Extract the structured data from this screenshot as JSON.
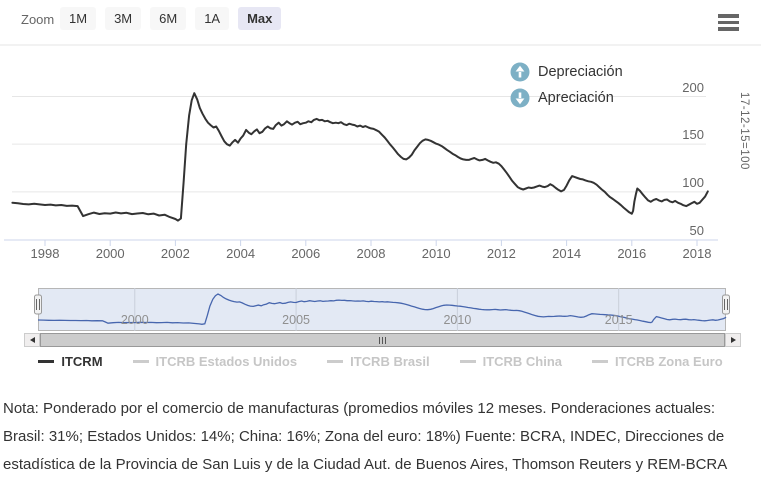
{
  "toolbar": {
    "zoom_label": "Zoom",
    "buttons": [
      {
        "label": "1M",
        "selected": false
      },
      {
        "label": "3M",
        "selected": false
      },
      {
        "label": "6M",
        "selected": false
      },
      {
        "label": "1A",
        "selected": false
      },
      {
        "label": "Max",
        "selected": true
      }
    ],
    "selected_button_color": "#e7e7f4",
    "menu_icon": "hamburger-icon"
  },
  "direction_legend": {
    "icon_color": "#7db0c5",
    "items": [
      {
        "icon": "arrow-up-circle-icon",
        "label": "Depreciación"
      },
      {
        "icon": "arrow-down-circle-icon",
        "label": "Apreciación"
      }
    ]
  },
  "chart_data": {
    "type": "line",
    "title": "",
    "xlabel": "",
    "ylabel": "17-12-15=100",
    "grid": true,
    "xaxis": {
      "ticks": [
        1998,
        2000,
        2002,
        2004,
        2006,
        2008,
        2010,
        2012,
        2014,
        2016,
        2018
      ],
      "range": [
        1997.0,
        2018.35
      ]
    },
    "yaxis": {
      "ticks": [
        50,
        100,
        150,
        200
      ],
      "range": [
        45,
        256
      ],
      "position": "right",
      "label": "17-12-15=100"
    },
    "series": [
      {
        "name": "ITCRM",
        "color": "#333333",
        "points": [
          [
            1997.0,
            88.5
          ],
          [
            1997.17,
            88
          ],
          [
            1997.33,
            87.2
          ],
          [
            1997.5,
            86.8
          ],
          [
            1997.67,
            87.4
          ],
          [
            1997.83,
            86.8
          ],
          [
            1998.0,
            86.2
          ],
          [
            1998.17,
            86.6
          ],
          [
            1998.33,
            85.8
          ],
          [
            1998.5,
            86.2
          ],
          [
            1998.67,
            85.2
          ],
          [
            1998.83,
            85.6
          ],
          [
            1999.0,
            85
          ],
          [
            1999.08,
            80
          ],
          [
            1999.17,
            74.5
          ],
          [
            1999.33,
            76.5
          ],
          [
            1999.5,
            78.2
          ],
          [
            1999.67,
            76.8
          ],
          [
            1999.83,
            77.6
          ],
          [
            2000.0,
            77.2
          ],
          [
            2000.17,
            78.3
          ],
          [
            2000.33,
            77.4
          ],
          [
            2000.5,
            78
          ],
          [
            2000.67,
            76.6
          ],
          [
            2000.83,
            77.3
          ],
          [
            2001.0,
            77.8
          ],
          [
            2001.17,
            76.4
          ],
          [
            2001.33,
            77.2
          ],
          [
            2001.5,
            75.2
          ],
          [
            2001.67,
            76
          ],
          [
            2001.83,
            73.5
          ],
          [
            2002.0,
            71.5
          ],
          [
            2002.08,
            69.8
          ],
          [
            2002.17,
            72
          ],
          [
            2002.25,
            110
          ],
          [
            2002.33,
            150
          ],
          [
            2002.42,
            180
          ],
          [
            2002.5,
            196
          ],
          [
            2002.58,
            203.5
          ],
          [
            2002.67,
            197
          ],
          [
            2002.75,
            188
          ],
          [
            2002.83,
            182
          ],
          [
            2002.92,
            176.5
          ],
          [
            2003.0,
            172.5
          ],
          [
            2003.08,
            170
          ],
          [
            2003.17,
            167.5
          ],
          [
            2003.25,
            168.5
          ],
          [
            2003.33,
            164
          ],
          [
            2003.42,
            158
          ],
          [
            2003.5,
            153
          ],
          [
            2003.58,
            150
          ],
          [
            2003.67,
            148.5
          ],
          [
            2003.75,
            152
          ],
          [
            2003.83,
            154.5
          ],
          [
            2003.92,
            151.5
          ],
          [
            2004.0,
            156
          ],
          [
            2004.08,
            159
          ],
          [
            2004.17,
            165
          ],
          [
            2004.25,
            162
          ],
          [
            2004.33,
            160.5
          ],
          [
            2004.42,
            163.5
          ],
          [
            2004.5,
            165.5
          ],
          [
            2004.58,
            161.5
          ],
          [
            2004.67,
            163
          ],
          [
            2004.75,
            166.5
          ],
          [
            2004.83,
            168.5
          ],
          [
            2004.92,
            166.5
          ],
          [
            2005.0,
            166
          ],
          [
            2005.08,
            170
          ],
          [
            2005.17,
            172.5
          ],
          [
            2005.25,
            169.5
          ],
          [
            2005.33,
            171
          ],
          [
            2005.42,
            174
          ],
          [
            2005.5,
            172
          ],
          [
            2005.58,
            170.5
          ],
          [
            2005.67,
            172.5
          ],
          [
            2005.75,
            173.5
          ],
          [
            2005.83,
            171
          ],
          [
            2005.92,
            172
          ],
          [
            2006.0,
            172.5
          ],
          [
            2006.08,
            174
          ],
          [
            2006.17,
            173
          ],
          [
            2006.25,
            175.5
          ],
          [
            2006.33,
            176.5
          ],
          [
            2006.42,
            175
          ],
          [
            2006.5,
            175.5
          ],
          [
            2006.58,
            174
          ],
          [
            2006.67,
            174.5
          ],
          [
            2006.75,
            173
          ],
          [
            2006.83,
            172
          ],
          [
            2006.92,
            172.5
          ],
          [
            2007.0,
            172
          ],
          [
            2007.08,
            173
          ],
          [
            2007.17,
            171
          ],
          [
            2007.25,
            170
          ],
          [
            2007.33,
            171.5
          ],
          [
            2007.42,
            170.5
          ],
          [
            2007.5,
            170
          ],
          [
            2007.58,
            168.5
          ],
          [
            2007.67,
            169.5
          ],
          [
            2007.75,
            168
          ],
          [
            2007.83,
            169
          ],
          [
            2007.92,
            167.5
          ],
          [
            2008.0,
            166.5
          ],
          [
            2008.08,
            166
          ],
          [
            2008.17,
            164.5
          ],
          [
            2008.25,
            163
          ],
          [
            2008.33,
            160
          ],
          [
            2008.42,
            157
          ],
          [
            2008.5,
            153.5
          ],
          [
            2008.58,
            150
          ],
          [
            2008.67,
            146.5
          ],
          [
            2008.75,
            143
          ],
          [
            2008.83,
            139.5
          ],
          [
            2008.92,
            136.5
          ],
          [
            2009.0,
            134.5
          ],
          [
            2009.08,
            134
          ],
          [
            2009.17,
            136
          ],
          [
            2009.25,
            139
          ],
          [
            2009.33,
            143.5
          ],
          [
            2009.42,
            147.5
          ],
          [
            2009.5,
            151
          ],
          [
            2009.58,
            153.5
          ],
          [
            2009.67,
            155
          ],
          [
            2009.75,
            154.5
          ],
          [
            2009.83,
            153.5
          ],
          [
            2009.92,
            152
          ],
          [
            2010.0,
            150.5
          ],
          [
            2010.08,
            149.5
          ],
          [
            2010.17,
            148
          ],
          [
            2010.25,
            146
          ],
          [
            2010.33,
            144
          ],
          [
            2010.42,
            142
          ],
          [
            2010.5,
            140
          ],
          [
            2010.58,
            138.5
          ],
          [
            2010.67,
            136.5
          ],
          [
            2010.75,
            135
          ],
          [
            2010.83,
            134
          ],
          [
            2010.92,
            133.5
          ],
          [
            2011.0,
            133.5
          ],
          [
            2011.08,
            134.5
          ],
          [
            2011.17,
            135.5
          ],
          [
            2011.25,
            134
          ],
          [
            2011.33,
            133
          ],
          [
            2011.42,
            133.5
          ],
          [
            2011.5,
            134.5
          ],
          [
            2011.58,
            133
          ],
          [
            2011.67,
            131.5
          ],
          [
            2011.75,
            130.5
          ],
          [
            2011.83,
            131
          ],
          [
            2011.92,
            129.5
          ],
          [
            2012.0,
            127
          ],
          [
            2012.08,
            123.5
          ],
          [
            2012.17,
            119.5
          ],
          [
            2012.25,
            115.5
          ],
          [
            2012.33,
            111.5
          ],
          [
            2012.42,
            108
          ],
          [
            2012.5,
            105
          ],
          [
            2012.58,
            103.5
          ],
          [
            2012.67,
            102.5
          ],
          [
            2012.75,
            103.5
          ],
          [
            2012.83,
            104.5
          ],
          [
            2012.92,
            104
          ],
          [
            2013.0,
            104.5
          ],
          [
            2013.08,
            105.5
          ],
          [
            2013.17,
            106.5
          ],
          [
            2013.25,
            105.5
          ],
          [
            2013.33,
            105
          ],
          [
            2013.42,
            106
          ],
          [
            2013.5,
            108
          ],
          [
            2013.58,
            106.5
          ],
          [
            2013.67,
            104
          ],
          [
            2013.75,
            102
          ],
          [
            2013.83,
            100.5
          ],
          [
            2013.92,
            102
          ],
          [
            2014.0,
            106.5
          ],
          [
            2014.08,
            112
          ],
          [
            2014.17,
            116.5
          ],
          [
            2014.25,
            115.5
          ],
          [
            2014.33,
            114.5
          ],
          [
            2014.42,
            113.5
          ],
          [
            2014.5,
            113
          ],
          [
            2014.58,
            112
          ],
          [
            2014.67,
            111
          ],
          [
            2014.75,
            110.5
          ],
          [
            2014.83,
            109.5
          ],
          [
            2014.92,
            107.5
          ],
          [
            2015.0,
            105
          ],
          [
            2015.08,
            102.5
          ],
          [
            2015.17,
            100
          ],
          [
            2015.25,
            97
          ],
          [
            2015.33,
            94.5
          ],
          [
            2015.42,
            92.5
          ],
          [
            2015.5,
            90.5
          ],
          [
            2015.58,
            88.5
          ],
          [
            2015.67,
            86
          ],
          [
            2015.75,
            83.5
          ],
          [
            2015.83,
            81
          ],
          [
            2015.92,
            78.5
          ],
          [
            2016.0,
            77
          ],
          [
            2016.04,
            80
          ],
          [
            2016.08,
            90
          ],
          [
            2016.13,
            98
          ],
          [
            2016.17,
            103.5
          ],
          [
            2016.25,
            101
          ],
          [
            2016.33,
            97.5
          ],
          [
            2016.42,
            94
          ],
          [
            2016.5,
            91
          ],
          [
            2016.58,
            89.5
          ],
          [
            2016.67,
            91.5
          ],
          [
            2016.75,
            92.5
          ],
          [
            2016.83,
            91
          ],
          [
            2016.92,
            90
          ],
          [
            2017.0,
            91.5
          ],
          [
            2017.08,
            92
          ],
          [
            2017.17,
            90
          ],
          [
            2017.25,
            89
          ],
          [
            2017.33,
            90.5
          ],
          [
            2017.42,
            88.5
          ],
          [
            2017.5,
            87.5
          ],
          [
            2017.58,
            86
          ],
          [
            2017.67,
            85
          ],
          [
            2017.75,
            86.5
          ],
          [
            2017.83,
            88
          ],
          [
            2017.92,
            89.5
          ],
          [
            2018.0,
            87.5
          ],
          [
            2018.08,
            88.5
          ],
          [
            2018.17,
            92
          ],
          [
            2018.25,
            95
          ],
          [
            2018.33,
            100.5
          ]
        ]
      }
    ],
    "navigator": {
      "labels": [
        2000,
        2005,
        2010,
        2015
      ],
      "line_color": "#4766ae",
      "mask_color": "rgba(102,133,194,0.18)",
      "outline_color": "#b6b6b6"
    },
    "legend_position": "bottom",
    "legend": [
      {
        "label": "ITCRM",
        "active": true
      },
      {
        "label": "ITCRB Estados Unidos",
        "active": false
      },
      {
        "label": "ITCRB Brasil",
        "active": false
      },
      {
        "label": "ITCRB China",
        "active": false
      },
      {
        "label": "ITCRB Zona Euro",
        "active": false
      }
    ]
  },
  "scrollbar": {
    "left_arrow": "left-arrow-icon",
    "right_arrow": "right-arrow-icon",
    "grip": "grip-icon"
  },
  "note": {
    "lines": [
      "Nota: Ponderado por el comercio de manufacturas (promedios móviles 12 meses. Ponderaciones actuales:",
      "Brasil: 31%; Estados Unidos: 14%; China: 16%; Zona del euro: 18%) Fuente: BCRA, INDEC, Direcciones de",
      "estadística de la Provincia de San Luis y de la Ciudad Aut. de Buenos Aires, Thomson Reuters y REM-BCRA"
    ]
  }
}
